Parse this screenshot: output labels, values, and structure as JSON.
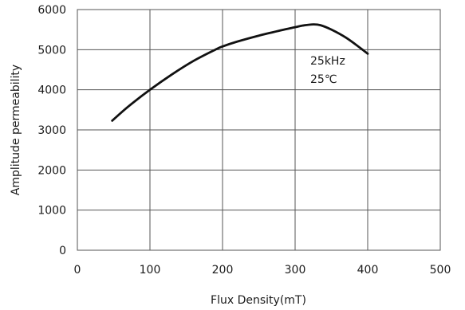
{
  "chart_data": {
    "type": "line",
    "xlabel": "Flux Density(mT)",
    "ylabel": "Amplitude permeability",
    "xlim": [
      0,
      500
    ],
    "ylim": [
      0,
      6000
    ],
    "x_ticks": [
      0,
      100,
      200,
      300,
      400,
      500
    ],
    "y_ticks": [
      0,
      1000,
      2000,
      3000,
      4000,
      5000,
      6000
    ],
    "x_tick_labels": [
      "0",
      "100",
      "200",
      "300",
      "400",
      "500"
    ],
    "y_tick_labels": [
      "0",
      "1000",
      "2000",
      "3000",
      "4000",
      "5000",
      "6000"
    ],
    "grid": true,
    "annotations": [
      "25kHz",
      "25℃"
    ],
    "series": [
      {
        "x": [
          48,
          70,
          100,
          130,
          160,
          190,
          200,
          220,
          250,
          280,
          300,
          310,
          325,
          335,
          350,
          370,
          390,
          400
        ],
        "y": [
          3230,
          3580,
          4000,
          4380,
          4720,
          5000,
          5080,
          5200,
          5350,
          5480,
          5560,
          5600,
          5630,
          5610,
          5500,
          5300,
          5040,
          4900
        ],
        "color": "#111111"
      }
    ]
  }
}
